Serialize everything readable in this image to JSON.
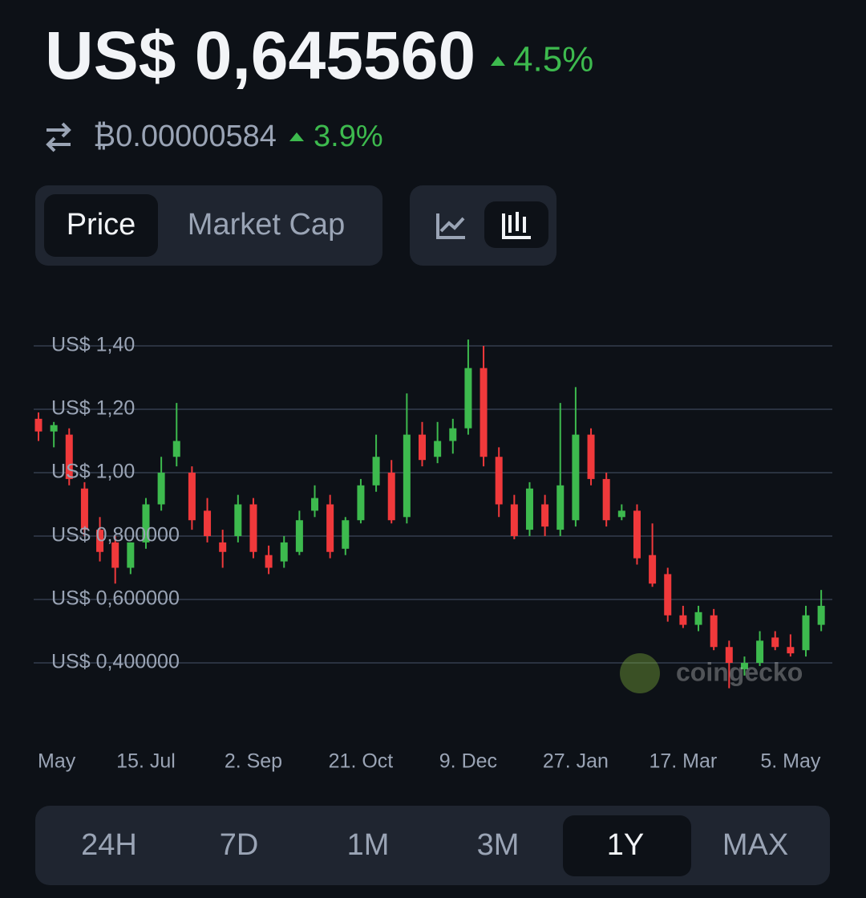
{
  "header": {
    "price": "US$ 0,645560",
    "price_change": "4.5%",
    "btc_price": "₿0.00000584",
    "btc_change": "3.9%"
  },
  "tabs": {
    "items": [
      "Price",
      "Market Cap"
    ],
    "selected": 0
  },
  "watermark": "coingecko",
  "ranges": {
    "items": [
      "24H",
      "7D",
      "1M",
      "3M",
      "1Y",
      "MAX"
    ],
    "selected": 4
  },
  "chart_data": {
    "type": "candlestick",
    "categories": [
      "May",
      null,
      null,
      null,
      null,
      null,
      null,
      "15. Jul",
      null,
      null,
      null,
      null,
      null,
      null,
      "2. Sep",
      null,
      null,
      null,
      null,
      null,
      null,
      "21. Oct",
      null,
      null,
      null,
      null,
      null,
      null,
      "9. Dec",
      null,
      null,
      null,
      null,
      null,
      null,
      "27. Jan",
      null,
      null,
      null,
      null,
      null,
      null,
      "17. Mar",
      null,
      null,
      null,
      null,
      null,
      null,
      "5. May",
      null,
      null
    ],
    "open": [
      1.17,
      1.13,
      1.12,
      0.95,
      0.82,
      0.78,
      0.7,
      0.78,
      0.9,
      1.05,
      1.0,
      0.88,
      0.78,
      0.8,
      0.9,
      0.74,
      0.72,
      0.75,
      0.88,
      0.9,
      0.76,
      0.85,
      0.96,
      1.0,
      0.86,
      1.12,
      1.05,
      1.1,
      1.14,
      1.33,
      1.05,
      0.9,
      0.82,
      0.9,
      0.82,
      0.85,
      1.12,
      0.98,
      0.86,
      0.88,
      0.74,
      0.68,
      0.55,
      0.52,
      0.55,
      0.45,
      0.38,
      0.4,
      0.48,
      0.45,
      0.44,
      0.52
    ],
    "high": [
      1.19,
      1.16,
      1.14,
      0.97,
      0.86,
      0.8,
      0.78,
      0.92,
      1.05,
      1.22,
      1.02,
      0.92,
      0.82,
      0.93,
      0.92,
      0.77,
      0.8,
      0.88,
      0.96,
      0.93,
      0.86,
      0.98,
      1.12,
      1.04,
      1.25,
      1.16,
      1.16,
      1.17,
      1.42,
      1.4,
      1.08,
      0.93,
      0.97,
      0.93,
      1.22,
      1.27,
      1.14,
      1.0,
      0.9,
      0.9,
      0.84,
      0.7,
      0.58,
      0.58,
      0.57,
      0.47,
      0.42,
      0.5,
      0.5,
      0.49,
      0.58,
      0.63
    ],
    "low": [
      1.1,
      1.08,
      0.96,
      0.8,
      0.72,
      0.65,
      0.68,
      0.76,
      0.88,
      1.02,
      0.82,
      0.78,
      0.7,
      0.78,
      0.73,
      0.68,
      0.7,
      0.74,
      0.86,
      0.73,
      0.74,
      0.84,
      0.94,
      0.84,
      0.84,
      1.02,
      1.03,
      1.06,
      1.12,
      1.02,
      0.86,
      0.79,
      0.8,
      0.8,
      0.8,
      0.83,
      0.96,
      0.83,
      0.85,
      0.71,
      0.64,
      0.53,
      0.51,
      0.5,
      0.44,
      0.32,
      0.36,
      0.39,
      0.44,
      0.42,
      0.42,
      0.5
    ],
    "close": [
      1.13,
      1.15,
      0.98,
      0.82,
      0.75,
      0.7,
      0.78,
      0.9,
      1.0,
      1.1,
      0.85,
      0.8,
      0.75,
      0.9,
      0.75,
      0.7,
      0.78,
      0.85,
      0.92,
      0.75,
      0.85,
      0.96,
      1.05,
      0.85,
      1.12,
      1.04,
      1.1,
      1.14,
      1.33,
      1.05,
      0.9,
      0.8,
      0.95,
      0.83,
      0.96,
      1.12,
      0.98,
      0.85,
      0.88,
      0.73,
      0.65,
      0.55,
      0.52,
      0.56,
      0.45,
      0.4,
      0.4,
      0.47,
      0.45,
      0.43,
      0.55,
      0.58
    ],
    "up_color": "#3dba4e",
    "down_color": "#f0393b",
    "ylim": [
      0.28,
      1.52
    ],
    "yticks": [
      {
        "value": 1.4,
        "label": "US$ 1,40"
      },
      {
        "value": 1.2,
        "label": "US$ 1,20"
      },
      {
        "value": 1.0,
        "label": "US$ 1,00"
      },
      {
        "value": 0.8,
        "label": "US$ 0,800000"
      },
      {
        "value": 0.6,
        "label": "US$ 0,600000"
      },
      {
        "value": 0.4,
        "label": "US$ 0,400000"
      }
    ],
    "grid": true
  }
}
